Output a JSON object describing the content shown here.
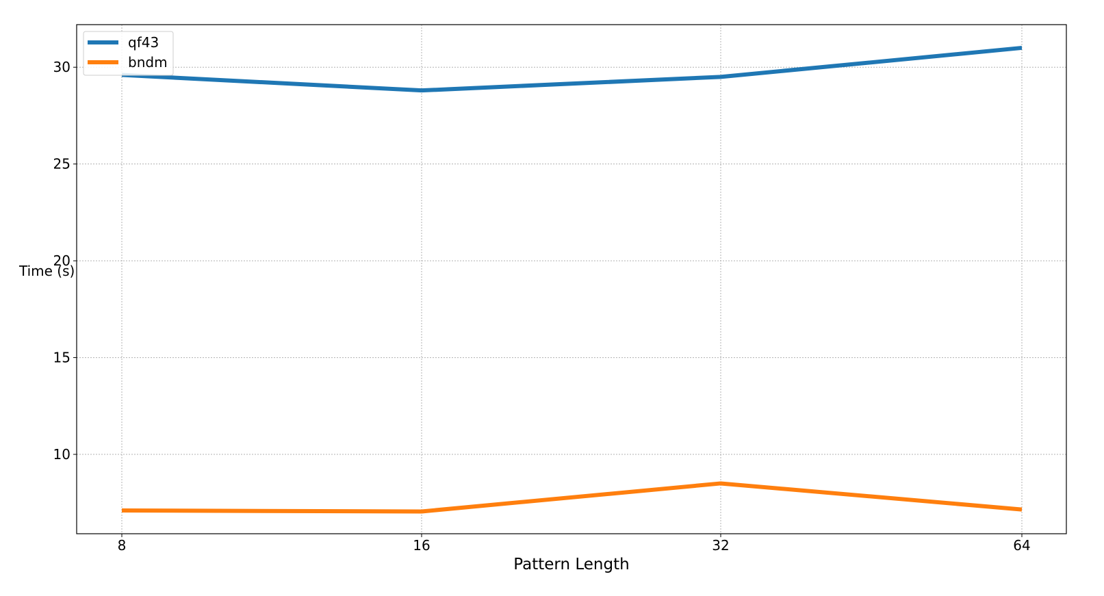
{
  "chart_data": {
    "type": "line",
    "title": "",
    "xlabel": "Pattern Length",
    "ylabel": "Time (s)",
    "x": [
      8,
      16,
      32,
      64
    ],
    "x_tick_labels": [
      "8",
      "16",
      "32",
      "64"
    ],
    "x_scale": "categorical-equal-spacing",
    "ylim": [
      5.9,
      32.2
    ],
    "y_ticks": [
      10,
      15,
      20,
      25,
      30
    ],
    "y_tick_labels": [
      "10",
      "15",
      "20",
      "25",
      "30"
    ],
    "grid": true,
    "legend_position": "upper-left",
    "series": [
      {
        "name": "qf43",
        "color": "#1f77b4",
        "values": [
          29.6,
          28.8,
          29.5,
          31.0
        ]
      },
      {
        "name": "bndm",
        "color": "#ff7f0e",
        "values": [
          7.1,
          7.05,
          8.5,
          7.15
        ]
      }
    ]
  }
}
